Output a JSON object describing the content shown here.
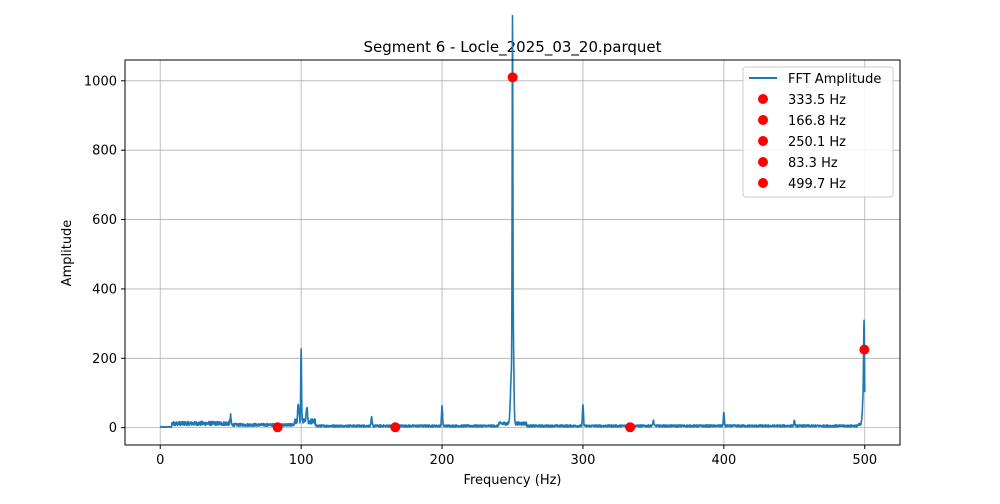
{
  "figure": {
    "background": "#ffffff"
  },
  "chart_data": {
    "type": "line",
    "title": "Segment 6 - Locle_2025_03_20.parquet",
    "xlabel": "Frequency (Hz)",
    "ylabel": "Amplitude",
    "xlim": [
      -25,
      525
    ],
    "ylim": [
      -50,
      1060
    ],
    "x_ticks": [
      0,
      100,
      200,
      300,
      400,
      500
    ],
    "y_ticks": [
      0,
      200,
      400,
      600,
      800,
      1000
    ],
    "grid": true,
    "legend_position": "top-right",
    "colors": {
      "line": "#1f77b4",
      "markers": "#ff0000",
      "grid": "#b0b0b0",
      "axes": "#000000"
    },
    "series": [
      {
        "name": "FFT Amplitude",
        "kind": "line",
        "description": "dense FFT spectrum; noise floor ~3-20 with sharp peaks",
        "baseline_segments": [
          {
            "x": [
              0,
              8
            ],
            "level": 2,
            "noise": 1
          },
          {
            "x": [
              8,
              50
            ],
            "level": 12,
            "noise": 6
          },
          {
            "x": [
              50,
              95
            ],
            "level": 8,
            "noise": 4
          },
          {
            "x": [
              95,
              110
            ],
            "level": 18,
            "noise": 8
          },
          {
            "x": [
              110,
              240
            ],
            "level": 5,
            "noise": 3
          },
          {
            "x": [
              240,
              260
            ],
            "level": 12,
            "noise": 5
          },
          {
            "x": [
              260,
              495
            ],
            "level": 5,
            "noise": 3
          },
          {
            "x": [
              495,
              500
            ],
            "level": 8,
            "noise": 4
          }
        ],
        "peaks": [
          {
            "x": 50,
            "y": 22,
            "width": 0.5
          },
          {
            "x": 98,
            "y": 48,
            "width": 0.6
          },
          {
            "x": 100,
            "y": 203,
            "width": 0.4
          },
          {
            "x": 104,
            "y": 40,
            "width": 0.6
          },
          {
            "x": 150,
            "y": 24,
            "width": 0.5
          },
          {
            "x": 200,
            "y": 58,
            "width": 0.5
          },
          {
            "x": 250,
            "y": 1010,
            "width": 0.35
          },
          {
            "x": 250.6,
            "y": 210,
            "width": 0.6
          },
          {
            "x": 249.3,
            "y": 150,
            "width": 1.0
          },
          {
            "x": 300,
            "y": 60,
            "width": 0.5
          },
          {
            "x": 350,
            "y": 16,
            "width": 0.5
          },
          {
            "x": 400,
            "y": 37,
            "width": 0.5
          },
          {
            "x": 450,
            "y": 14,
            "width": 0.5
          },
          {
            "x": 499.5,
            "y": 245,
            "width": 0.45
          },
          {
            "x": 499.0,
            "y": 80,
            "width": 0.9
          }
        ]
      },
      {
        "kind": "scatter",
        "points": [
          {
            "x": 333.5,
            "y": 1,
            "label": "333.5 Hz"
          },
          {
            "x": 166.8,
            "y": 1,
            "label": "166.8 Hz"
          },
          {
            "x": 250.1,
            "y": 1010,
            "label": "250.1 Hz"
          },
          {
            "x": 83.3,
            "y": 1,
            "label": "83.3 Hz"
          },
          {
            "x": 499.7,
            "y": 225,
            "label": "499.7 Hz"
          }
        ]
      }
    ],
    "legend": [
      {
        "label": "FFT Amplitude",
        "type": "line"
      },
      {
        "label": "333.5 Hz",
        "type": "marker"
      },
      {
        "label": "166.8 Hz",
        "type": "marker"
      },
      {
        "label": "250.1 Hz",
        "type": "marker"
      },
      {
        "label": "83.3 Hz",
        "type": "marker"
      },
      {
        "label": "499.7 Hz",
        "type": "marker"
      }
    ]
  }
}
